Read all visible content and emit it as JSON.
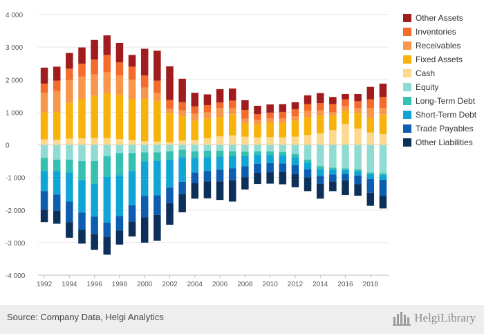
{
  "chart_data": {
    "type": "bar",
    "stacked": true,
    "categories": [
      "1992",
      "1993",
      "1994",
      "1995",
      "1996",
      "1997",
      "1998",
      "1999",
      "2000",
      "2001",
      "2002",
      "2003",
      "2004",
      "2005",
      "2006",
      "2007",
      "2008",
      "2009",
      "2010",
      "2011",
      "2012",
      "2013",
      "2014",
      "2015",
      "2016",
      "2017",
      "2018",
      "2019"
    ],
    "xtick_labels": [
      "1992",
      "1994",
      "1996",
      "1998",
      "2000",
      "2002",
      "2004",
      "2006",
      "2008",
      "2010",
      "2012",
      "2014",
      "2016",
      "2018"
    ],
    "ylim": [
      -4000,
      4000
    ],
    "yticks": [
      -4000,
      -3000,
      -2000,
      -1000,
      0,
      1000,
      2000,
      3000,
      4000
    ],
    "ytick_labels": [
      "-4 000",
      "-3 000",
      "-2 000",
      "-1 000",
      "0",
      "1 000",
      "2 000",
      "3 000",
      "4 000"
    ],
    "grid": true,
    "legend_position": "right",
    "positive_series": [
      {
        "name": "Cash",
        "color": "#FCD98E",
        "values": [
          170,
          160,
          190,
          200,
          210,
          210,
          180,
          150,
          110,
          100,
          80,
          130,
          150,
          200,
          260,
          290,
          250,
          230,
          240,
          230,
          250,
          300,
          350,
          450,
          640,
          500,
          380,
          330
        ]
      },
      {
        "name": "Fixed Assets",
        "color": "#F7B30C",
        "values": [
          830,
          850,
          1100,
          1200,
          1300,
          1370,
          1350,
          1250,
          1300,
          1250,
          900,
          750,
          600,
          600,
          600,
          650,
          420,
          400,
          450,
          450,
          500,
          550,
          550,
          450,
          400,
          480,
          450,
          600
        ]
      },
      {
        "name": "Receivables",
        "color": "#F8964B",
        "values": [
          600,
          640,
          700,
          700,
          650,
          650,
          600,
          600,
          350,
          250,
          130,
          180,
          200,
          200,
          270,
          180,
          130,
          140,
          130,
          130,
          130,
          200,
          160,
          100,
          150,
          150,
          300,
          200
        ]
      },
      {
        "name": "Inventories",
        "color": "#F46B2B",
        "values": [
          280,
          320,
          350,
          390,
          460,
          530,
          400,
          400,
          370,
          370,
          270,
          250,
          230,
          220,
          170,
          240,
          270,
          170,
          170,
          200,
          210,
          200,
          220,
          250,
          210,
          210,
          270,
          340
        ]
      },
      {
        "name": "Other Assets",
        "color": "#A01C1E",
        "values": [
          490,
          430,
          480,
          500,
          600,
          600,
          600,
          360,
          820,
          920,
          1030,
          720,
          420,
          330,
          410,
          370,
          300,
          260,
          250,
          240,
          220,
          270,
          310,
          220,
          160,
          220,
          380,
          410
        ]
      }
    ],
    "negative_series": [
      {
        "name": "Equity",
        "color": "#8FDCD4",
        "values": [
          -400,
          -450,
          -450,
          -500,
          -500,
          -350,
          -250,
          -250,
          -230,
          -230,
          -200,
          -150,
          -200,
          -180,
          -180,
          -200,
          -210,
          -200,
          -200,
          -220,
          -280,
          -450,
          -650,
          -700,
          -720,
          -750,
          -850,
          -870
        ]
      },
      {
        "name": "Long-Term Debt",
        "color": "#36C0B1",
        "values": [
          -400,
          -350,
          -400,
          -580,
          -700,
          -630,
          -680,
          -550,
          -280,
          -260,
          -250,
          -230,
          -200,
          -200,
          -180,
          -150,
          -140,
          -100,
          -110,
          -100,
          -100,
          -100,
          -100,
          -60,
          -50,
          -50,
          -50,
          -50
        ]
      },
      {
        "name": "Short-Term Debt",
        "color": "#10A5D5",
        "values": [
          -620,
          -720,
          -890,
          -1000,
          -1000,
          -1400,
          -1250,
          -1050,
          -1060,
          -1060,
          -860,
          -750,
          -450,
          -420,
          -400,
          -370,
          -310,
          -280,
          -250,
          -250,
          -240,
          -200,
          -200,
          -150,
          -120,
          -140,
          -150,
          -150
        ]
      },
      {
        "name": "Trade Payables",
        "color": "#0D5DB0",
        "values": [
          -570,
          -500,
          -630,
          -530,
          -540,
          -440,
          -450,
          -500,
          -650,
          -600,
          -480,
          -380,
          -320,
          -320,
          -360,
          -370,
          -330,
          -280,
          -280,
          -260,
          -280,
          -250,
          -250,
          -210,
          -200,
          -270,
          -420,
          -500
        ]
      },
      {
        "name": "Other Liabilities",
        "color": "#0C3059",
        "values": [
          -380,
          -400,
          -480,
          -420,
          -480,
          -550,
          -430,
          -460,
          -780,
          -790,
          -660,
          -560,
          -480,
          -520,
          -570,
          -650,
          -380,
          -340,
          -350,
          -380,
          -400,
          -420,
          -450,
          -300,
          -450,
          -350,
          -400,
          -380
        ]
      }
    ],
    "legend_order": [
      "Other Assets",
      "Inventories",
      "Receivables",
      "Fixed Assets",
      "Cash",
      "Equity",
      "Long-Term Debt",
      "Short-Term Debt",
      "Trade Payables",
      "Other Liabilities"
    ]
  },
  "footer": {
    "source": "Source: Company Data, Helgi Analytics",
    "brand": "HelgiLibrary"
  }
}
